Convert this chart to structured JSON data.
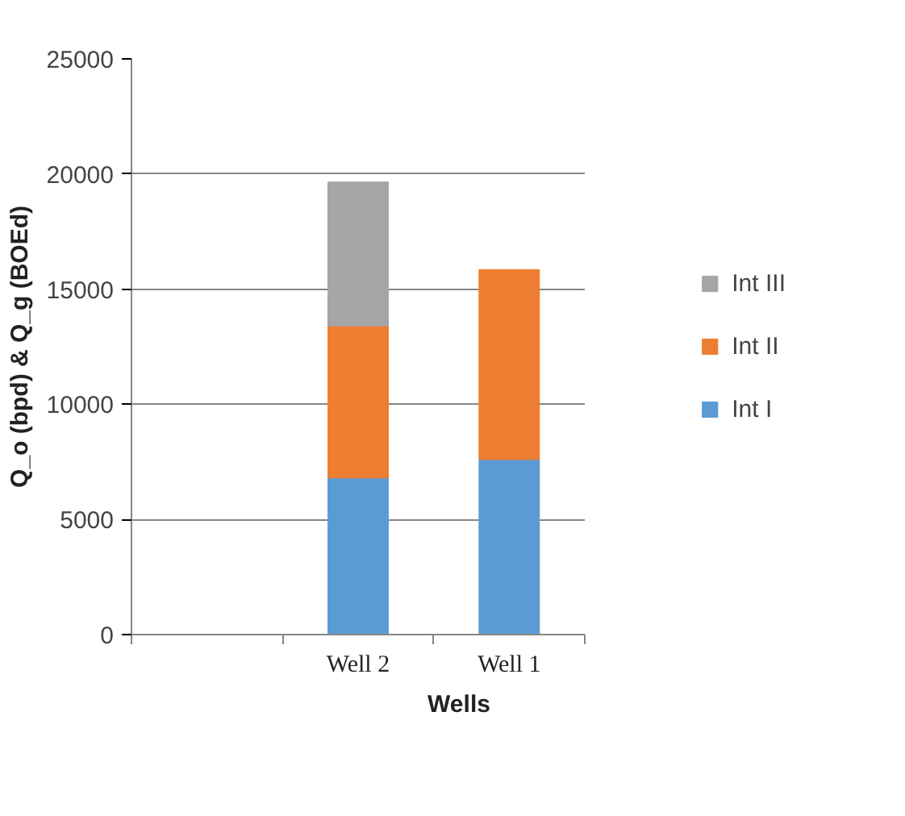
{
  "chart_data": {
    "type": "bar",
    "stacked": true,
    "xlabel": "Wells",
    "ylabel": "Q_o (bpd) & Q_g (BOEd)",
    "categories": [
      null,
      "Well 2",
      "Well 1"
    ],
    "series": [
      {
        "name": "Int I",
        "color": "#5b9bd5",
        "values": [
          null,
          6800,
          7600
        ]
      },
      {
        "name": "Int II",
        "color": "#ed7d31",
        "values": [
          null,
          6600,
          8250
        ]
      },
      {
        "name": "Int III",
        "color": "#a5a5a5",
        "values": [
          null,
          6250,
          null
        ]
      }
    ],
    "ylim": [
      0,
      25000
    ],
    "yticks": [
      0,
      5000,
      10000,
      15000,
      20000,
      25000
    ],
    "grid": "y",
    "legend": "right"
  }
}
